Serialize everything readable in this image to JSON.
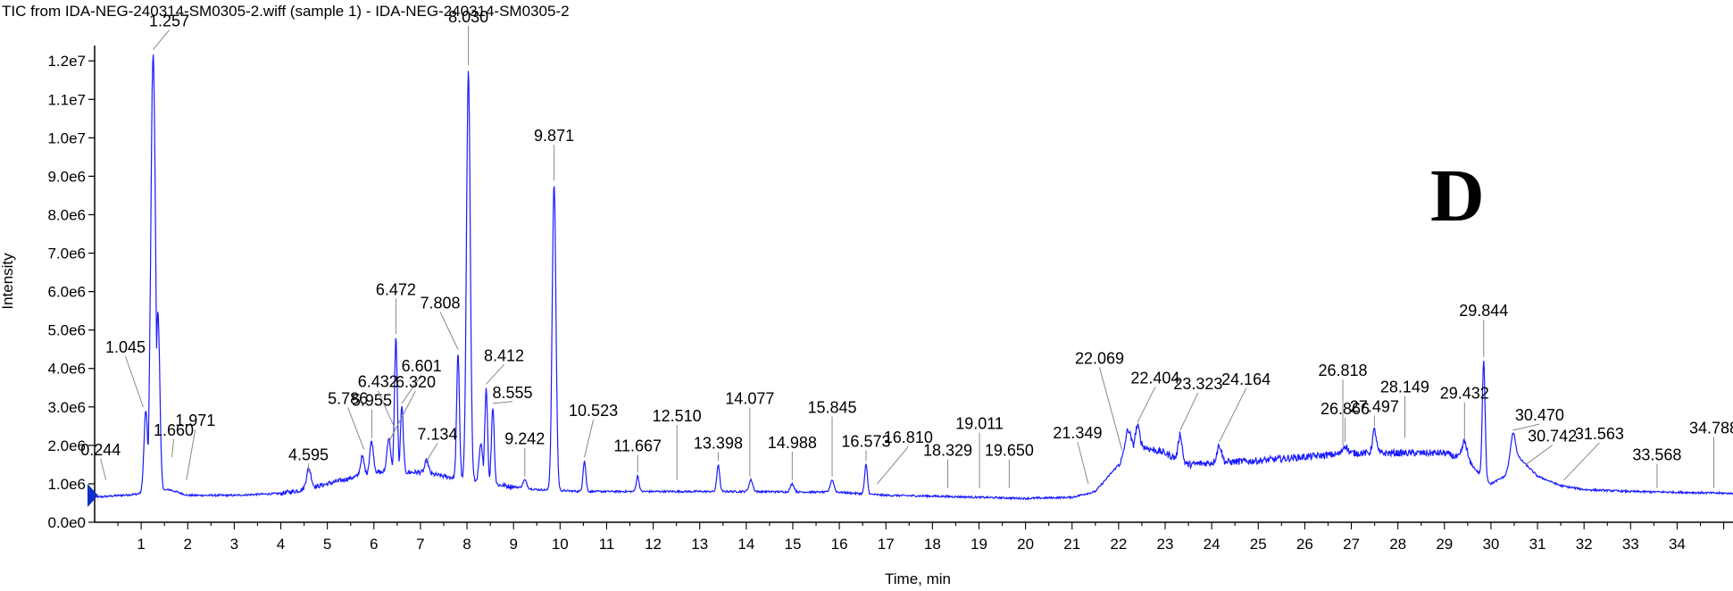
{
  "title": "TIC from IDA-NEG-240314-SM0305-2.wiff (sample 1) - IDA-NEG-240314-SM0305-2",
  "panel_letter": "D",
  "colors": {
    "trace": "#1a1aff",
    "axis": "#000000",
    "marker": "#1030c8"
  },
  "chart_data": {
    "type": "line",
    "title": "TIC from IDA-NEG-240314-SM0305-2.wiff (sample 1) - IDA-NEG-240314-SM0305-2",
    "xlabel": "Time, min",
    "ylabel": "Intensity",
    "xlim": [
      0,
      35.2
    ],
    "ylim": [
      0,
      12400000
    ],
    "x_ticks": [
      1,
      2,
      3,
      4,
      5,
      6,
      7,
      8,
      9,
      10,
      11,
      12,
      13,
      14,
      15,
      16,
      17,
      18,
      19,
      20,
      21,
      22,
      23,
      24,
      25,
      26,
      27,
      28,
      29,
      30,
      31,
      32,
      33,
      34
    ],
    "y_ticks": [
      {
        "value": 0,
        "label": "0.0e0"
      },
      {
        "value": 1000000,
        "label": "1.0e6"
      },
      {
        "value": 2000000,
        "label": "2.0e6"
      },
      {
        "value": 3000000,
        "label": "3.0e6"
      },
      {
        "value": 4000000,
        "label": "4.0e6"
      },
      {
        "value": 5000000,
        "label": "5.0e6"
      },
      {
        "value": 6000000,
        "label": "6.0e6"
      },
      {
        "value": 7000000,
        "label": "7.0e6"
      },
      {
        "value": 8000000,
        "label": "8.0e6"
      },
      {
        "value": 9000000,
        "label": "9.0e6"
      },
      {
        "value": 10000000,
        "label": "1.0e7"
      },
      {
        "value": 11000000,
        "label": "1.1e7"
      },
      {
        "value": 12000000,
        "label": "1.2e7"
      }
    ],
    "grid": false,
    "series": [
      {
        "baseline": [
          [
            0,
            650000.0
          ],
          [
            0.8,
            720000.0
          ],
          [
            1.0,
            750000.0
          ],
          [
            1.6,
            850000.0
          ],
          [
            2.0,
            700000.0
          ],
          [
            3.0,
            700000.0
          ],
          [
            4.0,
            750000.0
          ],
          [
            4.5,
            850000.0
          ],
          [
            5.0,
            1000000.0
          ],
          [
            5.5,
            1150000.0
          ],
          [
            6.0,
            1300000.0
          ],
          [
            7.0,
            1300000.0
          ],
          [
            7.5,
            1200000.0
          ],
          [
            8.5,
            1000000.0
          ],
          [
            9.5,
            850000.0
          ],
          [
            10.5,
            800000.0
          ],
          [
            12,
            800000.0
          ],
          [
            14,
            800000.0
          ],
          [
            16,
            780000.0
          ],
          [
            17,
            700000.0
          ],
          [
            18,
            680000.0
          ],
          [
            19,
            650000.0
          ],
          [
            20,
            620000.0
          ],
          [
            21,
            650000.0
          ],
          [
            21.5,
            800000.0
          ],
          [
            22,
            1500000.0
          ],
          [
            22.4,
            2000000.0
          ],
          [
            23,
            1800000.0
          ],
          [
            23.5,
            1500000.0
          ],
          [
            24,
            1550000.0
          ],
          [
            25,
            1600000.0
          ],
          [
            26,
            1700000.0
          ],
          [
            27,
            1800000.0
          ],
          [
            28,
            1800000.0
          ],
          [
            29,
            1800000.0
          ],
          [
            29.5,
            1600000.0
          ],
          [
            29.8,
            1200000.0
          ],
          [
            30.0,
            1000000.0
          ],
          [
            30.3,
            1200000.0
          ],
          [
            30.5,
            1800000.0
          ],
          [
            31.0,
            1200000.0
          ],
          [
            31.5,
            950000.0
          ],
          [
            32,
            850000.0
          ],
          [
            33,
            800000.0
          ],
          [
            34,
            780000.0
          ],
          [
            35.2,
            750000.0
          ]
        ],
        "peaks": [
          [
            1.1,
            2900000.0,
            0.04
          ],
          [
            1.257,
            12200000.0,
            0.05
          ],
          [
            1.36,
            5500000.0,
            0.04
          ],
          [
            4.6,
            1400000.0,
            0.05
          ],
          [
            5.75,
            1700000.0,
            0.04
          ],
          [
            5.95,
            2100000.0,
            0.04
          ],
          [
            6.32,
            2200000.0,
            0.04
          ],
          [
            6.472,
            4800000.0,
            0.03
          ],
          [
            6.601,
            3000000.0,
            0.03
          ],
          [
            7.134,
            1600000.0,
            0.04
          ],
          [
            7.808,
            4400000.0,
            0.03
          ],
          [
            8.03,
            11800000.0,
            0.04
          ],
          [
            8.3,
            2000000.0,
            0.04
          ],
          [
            8.412,
            3500000.0,
            0.03
          ],
          [
            8.555,
            3000000.0,
            0.03
          ],
          [
            9.242,
            1100000.0,
            0.04
          ],
          [
            9.871,
            8800000.0,
            0.04
          ],
          [
            10.523,
            1600000.0,
            0.03
          ],
          [
            11.667,
            1200000.0,
            0.03
          ],
          [
            13.398,
            1500000.0,
            0.03
          ],
          [
            14.1,
            1100000.0,
            0.04
          ],
          [
            14.988,
            1000000.0,
            0.04
          ],
          [
            15.845,
            1100000.0,
            0.04
          ],
          [
            16.573,
            1500000.0,
            0.03
          ],
          [
            22.2,
            2400000.0,
            0.06
          ],
          [
            22.404,
            2500000.0,
            0.05
          ],
          [
            23.323,
            2300000.0,
            0.04
          ],
          [
            24.164,
            2000000.0,
            0.05
          ],
          [
            26.866,
            2000000.0,
            0.05
          ],
          [
            27.497,
            2400000.0,
            0.04
          ],
          [
            29.432,
            2100000.0,
            0.05
          ],
          [
            29.844,
            4200000.0,
            0.03
          ],
          [
            30.47,
            2300000.0,
            0.05
          ]
        ]
      }
    ],
    "annotations": [
      {
        "label": "0.244",
        "x": 0.244,
        "y": 1000000.0
      },
      {
        "label": "1.045",
        "x": 1.045,
        "y": 2900000.0
      },
      {
        "label": "1.257",
        "x": 1.257,
        "y": 12200000.0
      },
      {
        "label": "1.660",
        "x": 1.66,
        "y": 1600000.0
      },
      {
        "label": "1.971",
        "x": 1.971,
        "y": 1000000.0
      },
      {
        "label": "4.595",
        "x": 4.595,
        "y": 1200000.0
      },
      {
        "label": "5.786",
        "x": 5.786,
        "y": 1800000.0
      },
      {
        "label": "5.955",
        "x": 5.955,
        "y": 2100000.0
      },
      {
        "label": "6.432",
        "x": 6.432,
        "y": 2400000.0
      },
      {
        "label": "6.472",
        "x": 6.472,
        "y": 4800000.0
      },
      {
        "label": "6.601",
        "x": 6.601,
        "y": 3000000.0
      },
      {
        "label": "6.320",
        "x": 6.32,
        "y": 2000000.0
      },
      {
        "label": "7.134",
        "x": 7.134,
        "y": 1500000.0
      },
      {
        "label": "7.808",
        "x": 7.808,
        "y": 4400000.0
      },
      {
        "label": "8.030",
        "x": 8.03,
        "y": 11800000.0
      },
      {
        "label": "8.412",
        "x": 8.412,
        "y": 3500000.0
      },
      {
        "label": "8.555",
        "x": 8.555,
        "y": 3000000.0
      },
      {
        "label": "9.242",
        "x": 9.242,
        "y": 1100000.0
      },
      {
        "label": "9.871",
        "x": 9.871,
        "y": 8800000.0
      },
      {
        "label": "10.523",
        "x": 10.523,
        "y": 1600000.0
      },
      {
        "label": "11.667",
        "x": 11.667,
        "y": 1200000.0
      },
      {
        "label": "12.510",
        "x": 12.51,
        "y": 1000000.0
      },
      {
        "label": "13.398",
        "x": 13.398,
        "y": 1500000.0
      },
      {
        "label": "14.077",
        "x": 14.077,
        "y": 1100000.0
      },
      {
        "label": "14.988",
        "x": 14.988,
        "y": 1000000.0
      },
      {
        "label": "15.845",
        "x": 15.845,
        "y": 1100000.0
      },
      {
        "label": "16.573",
        "x": 16.573,
        "y": 1500000.0
      },
      {
        "label": "16.810",
        "x": 16.81,
        "y": 900000.0
      },
      {
        "label": "18.329",
        "x": 18.329,
        "y": 800000.0
      },
      {
        "label": "19.011",
        "x": 19.011,
        "y": 800000.0
      },
      {
        "label": "19.650",
        "x": 19.65,
        "y": 800000.0
      },
      {
        "label": "21.349",
        "x": 21.349,
        "y": 900000.0
      },
      {
        "label": "22.069",
        "x": 22.069,
        "y": 1800000.0
      },
      {
        "label": "22.404",
        "x": 22.404,
        "y": 2500000.0
      },
      {
        "label": "23.323",
        "x": 23.323,
        "y": 2300000.0
      },
      {
        "label": "24.164",
        "x": 24.164,
        "y": 2000000.0
      },
      {
        "label": "26.818",
        "x": 26.818,
        "y": 1900000.0
      },
      {
        "label": "26.866",
        "x": 26.866,
        "y": 2000000.0
      },
      {
        "label": "27.497",
        "x": 27.497,
        "y": 2400000.0
      },
      {
        "label": "28.149",
        "x": 28.149,
        "y": 2100000.0
      },
      {
        "label": "29.432",
        "x": 29.432,
        "y": 2100000.0
      },
      {
        "label": "29.844",
        "x": 29.844,
        "y": 4200000.0
      },
      {
        "label": "30.470",
        "x": 30.47,
        "y": 2300000.0
      },
      {
        "label": "30.742",
        "x": 30.742,
        "y": 1400000.0
      },
      {
        "label": "31.563",
        "x": 31.563,
        "y": 1000000.0
      },
      {
        "label": "33.568",
        "x": 33.568,
        "y": 800000.0
      },
      {
        "label": "34.788",
        "x": 34.788,
        "y": 800000.0
      }
    ]
  }
}
